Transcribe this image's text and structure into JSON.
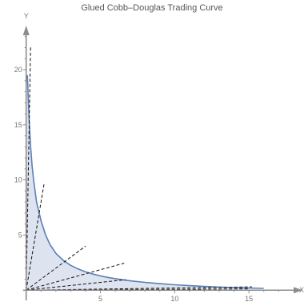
{
  "chart_data": {
    "type": "line",
    "title": "Glued Cobb–Douglas Trading Curve",
    "xlabel": "X",
    "ylabel": "Y",
    "xlim": [
      -0.2,
      18.6
    ],
    "ylim": [
      -0.2,
      24
    ],
    "x_ticks": [
      0,
      5,
      10,
      15
    ],
    "x_tick_labels": [
      "",
      "5",
      "10",
      "15"
    ],
    "y_ticks": [
      0,
      5,
      10,
      15,
      20
    ],
    "y_tick_labels": [
      "",
      "5",
      "10",
      "15",
      "20"
    ],
    "grid": false,
    "legend": "none",
    "series": [
      {
        "x": [
          0.08,
          0.2,
          0.3,
          0.4,
          0.5,
          0.7,
          1.0,
          1.3,
          1.6,
          2.0,
          2.5,
          3.0,
          3.5,
          4.0,
          4.5,
          5.0,
          5.5,
          6.0,
          7.0,
          8.0,
          9.0,
          10.0,
          11.0,
          12.0,
          13.0,
          14.0,
          15.0,
          16.0
        ],
        "y": [
          19.5,
          15.5,
          13.0,
          11.3,
          10.0,
          8.0,
          6.3,
          5.05,
          4.15,
          3.35,
          2.7,
          2.25,
          1.92,
          1.66,
          1.46,
          1.3,
          1.16,
          1.04,
          0.85,
          0.71,
          0.59,
          0.49,
          0.41,
          0.34,
          0.28,
          0.23,
          0.19,
          0.16
        ]
      }
    ],
    "tangent_lines": [
      {
        "from": [
          0,
          0
        ],
        "to": [
          0.3,
          22.2
        ]
      },
      {
        "from": [
          0,
          0
        ],
        "to": [
          1.2,
          9.6
        ]
      },
      {
        "from": [
          0,
          0
        ],
        "to": [
          4.0,
          4.0
        ]
      },
      {
        "from": [
          0,
          0
        ],
        "to": [
          6.6,
          2.45
        ]
      },
      {
        "from": [
          0,
          0
        ],
        "to": [
          6.7,
          0.95
        ]
      },
      {
        "from": [
          0,
          0
        ],
        "to": [
          15.2,
          0.3
        ]
      },
      {
        "from": [
          0,
          0
        ],
        "to": [
          15.0,
          0.12
        ]
      }
    ],
    "colors": {
      "curve": "#5b7fb5",
      "fill": "#dde4f0",
      "dash": "#111111",
      "axis": "#8c8c8c"
    }
  }
}
